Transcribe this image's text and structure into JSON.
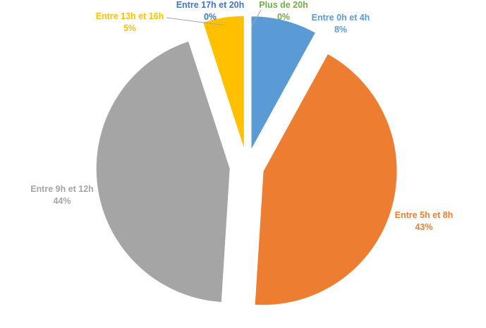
{
  "chart_data": {
    "type": "pie",
    "title": "",
    "legend": "none",
    "slices": [
      {
        "label": "Entre 0h et 4h",
        "value": 8,
        "percent_label": "8%",
        "color": "#5B9BD5"
      },
      {
        "label": "Entre 5h et 8h",
        "value": 43,
        "percent_label": "43%",
        "color": "#ED7D31"
      },
      {
        "label": "Entre 9h et 12h",
        "value": 44,
        "percent_label": "44%",
        "color": "#A5A5A5"
      },
      {
        "label": "Entre 13h et 16h",
        "value": 5,
        "percent_label": "5%",
        "color": "#FFC000"
      },
      {
        "label": "Entre 17h et 20h",
        "value": 0,
        "percent_label": "0%",
        "color": "#4472C4"
      },
      {
        "label": "Plus de 20h",
        "value": 0,
        "percent_label": "0%",
        "color": "#70AD47"
      }
    ]
  }
}
